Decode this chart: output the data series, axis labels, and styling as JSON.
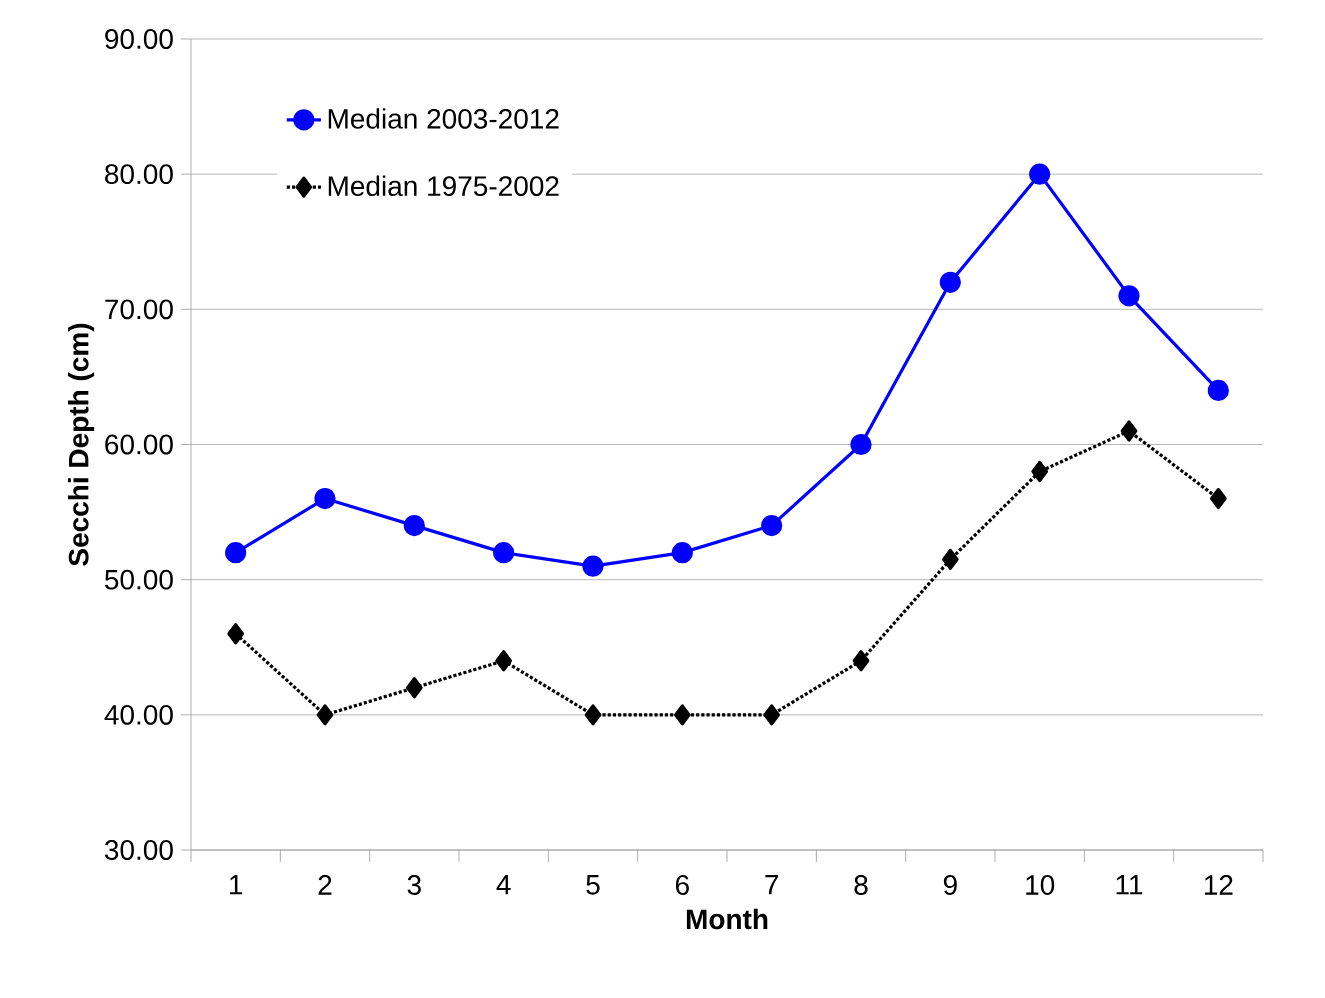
{
  "chart_data": {
    "type": "line",
    "xlabel": "Month",
    "ylabel": "Secchi Depth (cm)",
    "categories": [
      "1",
      "2",
      "3",
      "4",
      "5",
      "6",
      "7",
      "8",
      "9",
      "10",
      "11",
      "12"
    ],
    "series": [
      {
        "name": "Median 2003-2012",
        "color": "#0000ff",
        "marker": "circle",
        "line_style": "solid",
        "values": [
          52,
          56,
          54,
          52,
          51,
          52,
          54,
          60,
          72,
          80,
          71,
          64
        ]
      },
      {
        "name": "Median 1975-2002",
        "color": "#000000",
        "marker": "diamond",
        "line_style": "dotted",
        "values": [
          46,
          40,
          42,
          44,
          40,
          40,
          40,
          44,
          51.5,
          58,
          61,
          56
        ]
      }
    ],
    "ylim": [
      30,
      90
    ],
    "yticks": [
      {
        "value": 30,
        "label": "30.00"
      },
      {
        "value": 40,
        "label": "40.00"
      },
      {
        "value": 50,
        "label": "50.00"
      },
      {
        "value": 60,
        "label": "60.00"
      },
      {
        "value": 70,
        "label": "70.00"
      },
      {
        "value": 80,
        "label": "80.00"
      },
      {
        "value": 90,
        "label": "90.00"
      }
    ],
    "grid": "y",
    "legend": "top left"
  }
}
